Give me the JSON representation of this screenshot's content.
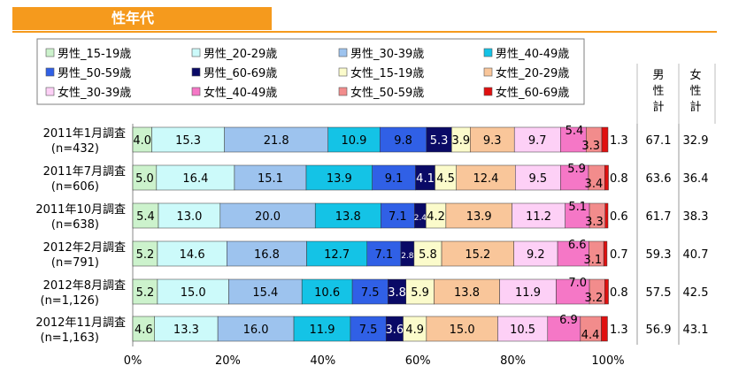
{
  "page": {
    "section_title": "性年代"
  },
  "chart_data": {
    "type": "stacked-bar-horizontal-100",
    "categories": [
      "2011年1月調査\n(n=432)",
      "2011年7月調査\n(n=606)",
      "2011年10月調査\n(n=638)",
      "2012年2月調査\n(n=791)",
      "2012年8月調査\n(n=1,126)",
      "2012年11月調査\n(n=1,163)"
    ],
    "series": [
      {
        "name": "男性_15-19歳",
        "color": "#ccf2cc",
        "values": [
          4.0,
          5.0,
          5.4,
          5.2,
          5.2,
          4.6
        ]
      },
      {
        "name": "男性_20-29歳",
        "color": "#ccfafa",
        "values": [
          15.3,
          16.4,
          13.0,
          14.6,
          15.0,
          13.3
        ]
      },
      {
        "name": "男性_30-39歳",
        "color": "#9dc3ee",
        "values": [
          21.8,
          15.1,
          20.0,
          16.8,
          15.4,
          16.0
        ]
      },
      {
        "name": "男性_40-49歳",
        "color": "#14c3e6",
        "values": [
          10.9,
          13.9,
          13.8,
          12.7,
          10.6,
          11.9
        ]
      },
      {
        "name": "男性_50-59歳",
        "color": "#3060e6",
        "values": [
          9.8,
          9.1,
          7.1,
          7.1,
          7.5,
          7.5
        ]
      },
      {
        "name": "男性_60-69歳",
        "color": "#0a0a66",
        "values": [
          5.3,
          4.1,
          2.4,
          2.8,
          3.8,
          3.6
        ]
      },
      {
        "name": "女性_15-19歳",
        "color": "#fbfbcb",
        "values": [
          3.9,
          4.5,
          4.2,
          5.8,
          5.9,
          4.9
        ]
      },
      {
        "name": "女性_20-29歳",
        "color": "#f9c69a",
        "values": [
          9.3,
          12.4,
          13.9,
          15.2,
          13.8,
          15.0
        ]
      },
      {
        "name": "女性_30-39歳",
        "color": "#fdd0f6",
        "values": [
          9.7,
          9.5,
          11.2,
          9.2,
          11.9,
          10.5
        ]
      },
      {
        "name": "女性_40-49歳",
        "color": "#f577c6",
        "values": [
          5.4,
          5.9,
          5.1,
          6.6,
          7.0,
          6.9
        ]
      },
      {
        "name": "女性_50-59歳",
        "color": "#f28c8c",
        "values": [
          3.3,
          3.4,
          3.3,
          3.1,
          3.2,
          4.4
        ]
      },
      {
        "name": "女性_60-69歳",
        "color": "#e01010",
        "values": [
          1.3,
          0.8,
          0.6,
          0.7,
          0.8,
          1.3
        ]
      }
    ],
    "totals": {
      "headers": [
        "男\n性\n計",
        "女\n性\n計"
      ],
      "male": [
        67.1,
        63.6,
        61.7,
        59.3,
        57.5,
        56.9
      ],
      "female": [
        32.9,
        36.4,
        38.3,
        40.7,
        42.5,
        43.1
      ]
    },
    "x_ticks": [
      "0%",
      "20%",
      "40%",
      "60%",
      "80%",
      "100%"
    ],
    "xlim": [
      0,
      100
    ],
    "legend_position": "top",
    "grid": false
  }
}
